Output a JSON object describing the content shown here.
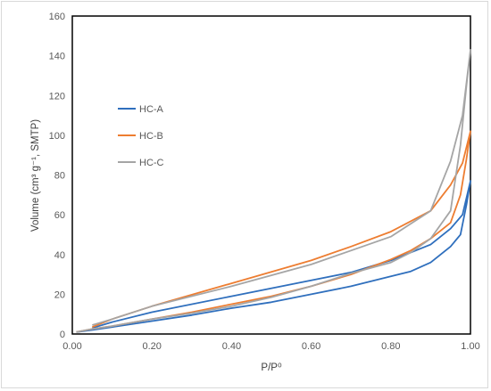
{
  "chart_data": {
    "type": "line",
    "title": "",
    "xlabel": "P/P⁰",
    "ylabel": "Volume (cm³ g⁻¹, SMTP)",
    "xlim": [
      0.0,
      1.0
    ],
    "ylim": [
      0,
      160
    ],
    "x_ticks": [
      "0.00",
      "0.20",
      "0.40",
      "0.60",
      "0.80",
      "1.00"
    ],
    "y_ticks": [
      "0",
      "20",
      "40",
      "60",
      "80",
      "100",
      "120",
      "140",
      "160"
    ],
    "grid": false,
    "legend_position": "left-middle",
    "series": [
      {
        "name": "HC-A",
        "color": "#2f6fbd",
        "adsorption": [
          [
            0.01,
            1
          ],
          [
            0.05,
            2
          ],
          [
            0.1,
            3.5
          ],
          [
            0.2,
            6.5
          ],
          [
            0.3,
            9.5
          ],
          [
            0.4,
            13
          ],
          [
            0.5,
            16
          ],
          [
            0.6,
            20
          ],
          [
            0.7,
            24
          ],
          [
            0.8,
            29
          ],
          [
            0.85,
            31.5
          ],
          [
            0.9,
            36
          ],
          [
            0.95,
            44
          ],
          [
            0.975,
            50
          ],
          [
            0.99,
            65
          ],
          [
            1.0,
            77
          ]
        ],
        "desorption": [
          [
            1.0,
            77
          ],
          [
            0.98,
            60
          ],
          [
            0.95,
            53
          ],
          [
            0.9,
            45
          ],
          [
            0.8,
            37
          ],
          [
            0.7,
            31
          ],
          [
            0.6,
            27
          ],
          [
            0.4,
            19
          ],
          [
            0.2,
            11
          ],
          [
            0.1,
            6
          ],
          [
            0.05,
            3
          ]
        ]
      },
      {
        "name": "HC-B",
        "color": "#ed7d31",
        "adsorption": [
          [
            0.01,
            1
          ],
          [
            0.05,
            2.5
          ],
          [
            0.1,
            4
          ],
          [
            0.2,
            7.5
          ],
          [
            0.3,
            11
          ],
          [
            0.4,
            15
          ],
          [
            0.5,
            19
          ],
          [
            0.6,
            24
          ],
          [
            0.7,
            30
          ],
          [
            0.8,
            37.5
          ],
          [
            0.85,
            42
          ],
          [
            0.9,
            48
          ],
          [
            0.95,
            56
          ],
          [
            0.975,
            70
          ],
          [
            0.99,
            88
          ],
          [
            1.0,
            102
          ]
        ],
        "desorption": [
          [
            1.0,
            102
          ],
          [
            0.98,
            86
          ],
          [
            0.95,
            75
          ],
          [
            0.9,
            62
          ],
          [
            0.8,
            51.5
          ],
          [
            0.7,
            44
          ],
          [
            0.6,
            37
          ],
          [
            0.4,
            25.5
          ],
          [
            0.2,
            14
          ],
          [
            0.1,
            7.5
          ],
          [
            0.05,
            3.5
          ]
        ]
      },
      {
        "name": "HC-C",
        "color": "#a5a5a5",
        "adsorption": [
          [
            0.01,
            1
          ],
          [
            0.05,
            2.5
          ],
          [
            0.1,
            4
          ],
          [
            0.2,
            7.5
          ],
          [
            0.3,
            10.5
          ],
          [
            0.4,
            14
          ],
          [
            0.5,
            18.5
          ],
          [
            0.6,
            24
          ],
          [
            0.7,
            30.5
          ],
          [
            0.8,
            36
          ],
          [
            0.85,
            41
          ],
          [
            0.9,
            48
          ],
          [
            0.95,
            62
          ],
          [
            0.975,
            95
          ],
          [
            0.99,
            125
          ],
          [
            1.0,
            143
          ]
        ],
        "desorption": [
          [
            1.0,
            143
          ],
          [
            0.98,
            110
          ],
          [
            0.95,
            87
          ],
          [
            0.9,
            62
          ],
          [
            0.8,
            49
          ],
          [
            0.7,
            42
          ],
          [
            0.6,
            35
          ],
          [
            0.4,
            24
          ],
          [
            0.2,
            14
          ],
          [
            0.1,
            7.5
          ],
          [
            0.05,
            4.5
          ]
        ]
      }
    ]
  }
}
